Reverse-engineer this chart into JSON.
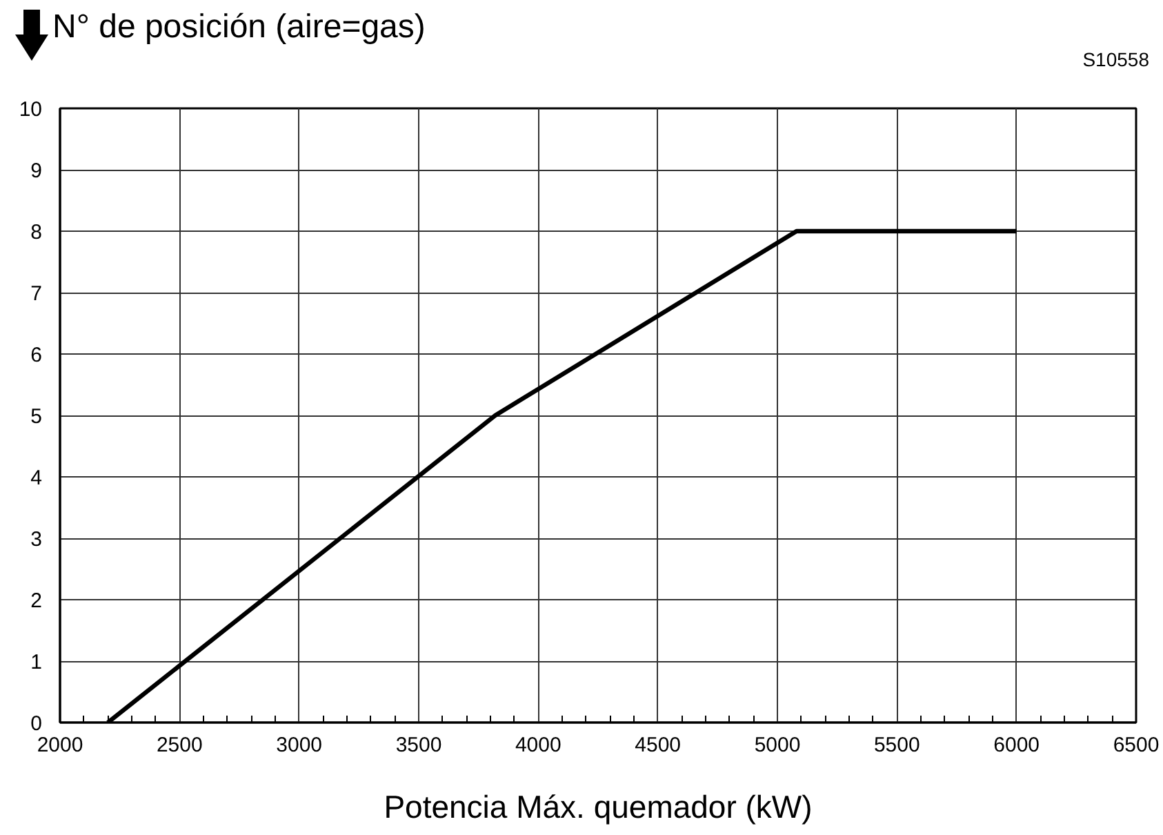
{
  "chart_data": {
    "type": "line",
    "ylabel": "N° de posición (aire=gas)",
    "xlabel": "Potencia Máx. quemador (kW)",
    "annotations": [
      "S10558"
    ],
    "x": [
      2200,
      3820,
      5080,
      6000
    ],
    "series": [
      {
        "color": "#000000",
        "values": [
          0,
          5,
          8,
          8
        ]
      }
    ],
    "xlim": [
      2000,
      6500
    ],
    "ylim": [
      0,
      10
    ],
    "xticks": [
      2000,
      {
        "value": 2100,
        "label": null
      },
      {
        "value": 2200,
        "label": null
      },
      {
        "value": 2300,
        "label": null
      },
      {
        "value": 2400,
        "label": null
      },
      2500,
      {
        "value": 2600,
        "label": null
      },
      {
        "value": 2700,
        "label": null
      },
      {
        "value": 2800,
        "label": null
      },
      {
        "value": 2900,
        "label": null
      },
      3000,
      {
        "value": 3100,
        "label": null
      },
      {
        "value": 3200,
        "label": null
      },
      {
        "value": 3300,
        "label": null
      },
      {
        "value": 3400,
        "label": null
      },
      3500,
      {
        "value": 3600,
        "label": null
      },
      {
        "value": 3700,
        "label": null
      },
      {
        "value": 3800,
        "label": null
      },
      {
        "value": 3900,
        "label": null
      },
      4000,
      {
        "value": 4100,
        "label": null
      },
      {
        "value": 4200,
        "label": null
      },
      {
        "value": 4300,
        "label": null
      },
      {
        "value": 4400,
        "label": null
      },
      4500,
      {
        "value": 4600,
        "label": null
      },
      {
        "value": 4700,
        "label": null
      },
      {
        "value": 4800,
        "label": null
      },
      {
        "value": 4900,
        "label": null
      },
      5000,
      {
        "value": 5100,
        "label": null
      },
      {
        "value": 5200,
        "label": null
      },
      {
        "value": 5300,
        "label": null
      },
      {
        "value": 5400,
        "label": null
      },
      5500,
      {
        "value": 5600,
        "label": null
      },
      {
        "value": 5700,
        "label": null
      },
      {
        "value": 5800,
        "label": null
      },
      {
        "value": 5900,
        "label": null
      },
      6000,
      {
        "value": 6100,
        "label": null
      },
      {
        "value": 6200,
        "label": null
      },
      {
        "value": 6300,
        "label": null
      },
      {
        "value": 6400,
        "label": null
      },
      6500
    ],
    "yticks": [
      0,
      1,
      2,
      3,
      4,
      5,
      6,
      7,
      8,
      9,
      10
    ],
    "grid": true,
    "marker": "none",
    "line_style": "solid"
  }
}
